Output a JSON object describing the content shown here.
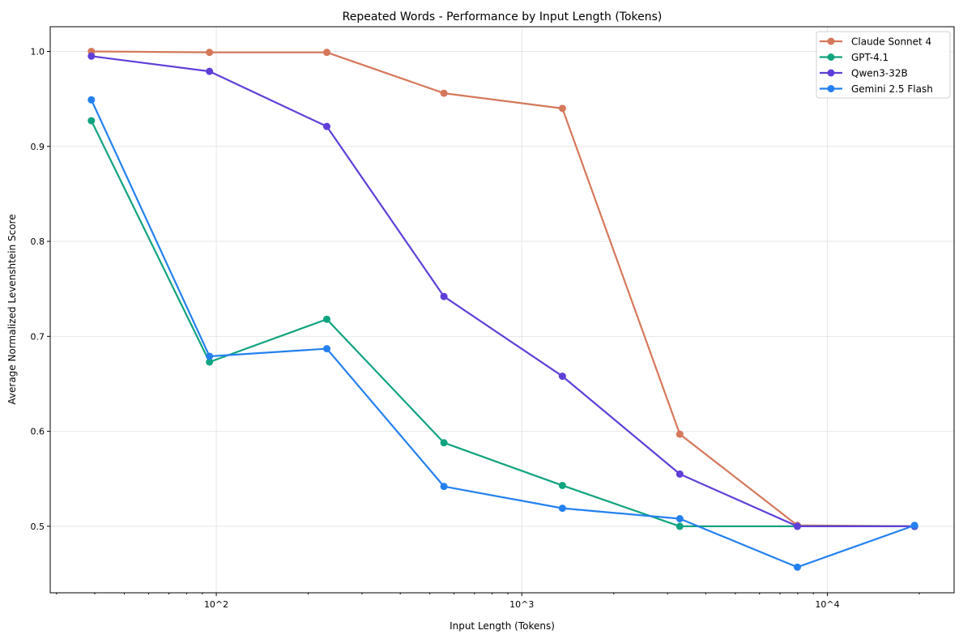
{
  "chart_data": {
    "type": "line",
    "title": "Repeated Words - Performance by Input Length (Tokens)",
    "xlabel": "Input Length (Tokens)",
    "ylabel": "Average Normalized Levenshtein Score",
    "xscale": "log",
    "xlim": [
      28.6,
      26000
    ],
    "ylim": [
      0.43,
      1.026
    ],
    "xticks": [
      {
        "value": 100,
        "label": "10^2"
      },
      {
        "value": 1000,
        "label": "10^3"
      },
      {
        "value": 10000,
        "label": "10^4"
      }
    ],
    "yticks": [
      0.5,
      0.6,
      0.7,
      0.8,
      0.9,
      1.0
    ],
    "ytick_labels": [
      "0.5",
      "0.6",
      "0.7",
      "0.8",
      "0.9",
      "1.0"
    ],
    "grid": true,
    "legend_position": "top-right",
    "x": [
      39,
      95,
      230,
      556,
      1358,
      3290,
      7980,
      19300
    ],
    "series": [
      {
        "name": "Claude Sonnet 4",
        "color": "#d5785a",
        "values": [
          1.0,
          0.999,
          0.999,
          0.956,
          0.94,
          0.597,
          0.501,
          0.5
        ]
      },
      {
        "name": "GPT-4.1",
        "color": "#10a37f",
        "values": [
          0.927,
          0.673,
          0.718,
          0.588,
          0.543,
          0.5,
          0.5,
          0.5
        ]
      },
      {
        "name": "Qwen3-32B",
        "color": "#5f3fd8",
        "values": [
          0.995,
          0.979,
          0.921,
          0.742,
          0.658,
          0.555,
          0.5,
          0.5
        ]
      },
      {
        "name": "Gemini 2.5 Flash",
        "color": "#2480ef",
        "values": [
          0.949,
          0.679,
          0.687,
          0.542,
          0.519,
          0.508,
          0.457,
          0.501
        ]
      }
    ]
  }
}
